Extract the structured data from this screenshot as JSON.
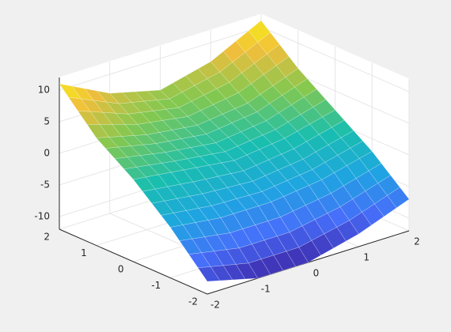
{
  "chart_data": {
    "type": "surface",
    "x": [
      -2,
      -1,
      0,
      1,
      2
    ],
    "y": [
      -2,
      -1,
      0,
      1,
      2
    ],
    "z": [
      [
        -10,
        -12,
        -12,
        -10,
        -7
      ],
      [
        -4,
        -5,
        -5,
        -4,
        -2
      ],
      [
        1,
        0,
        -1,
        0,
        2
      ],
      [
        5,
        3,
        2,
        3,
        6
      ],
      [
        11,
        7,
        5,
        7,
        11
      ]
    ],
    "xlim": [
      -2,
      2
    ],
    "ylim": [
      -2,
      2
    ],
    "zlim": [
      -12,
      12
    ],
    "xticks": [
      -2,
      -1,
      0,
      1,
      2
    ],
    "yticks": [
      -2,
      -1,
      0,
      1,
      2
    ],
    "zticks": [
      -10,
      -5,
      0,
      5,
      10
    ],
    "grid": true
  }
}
